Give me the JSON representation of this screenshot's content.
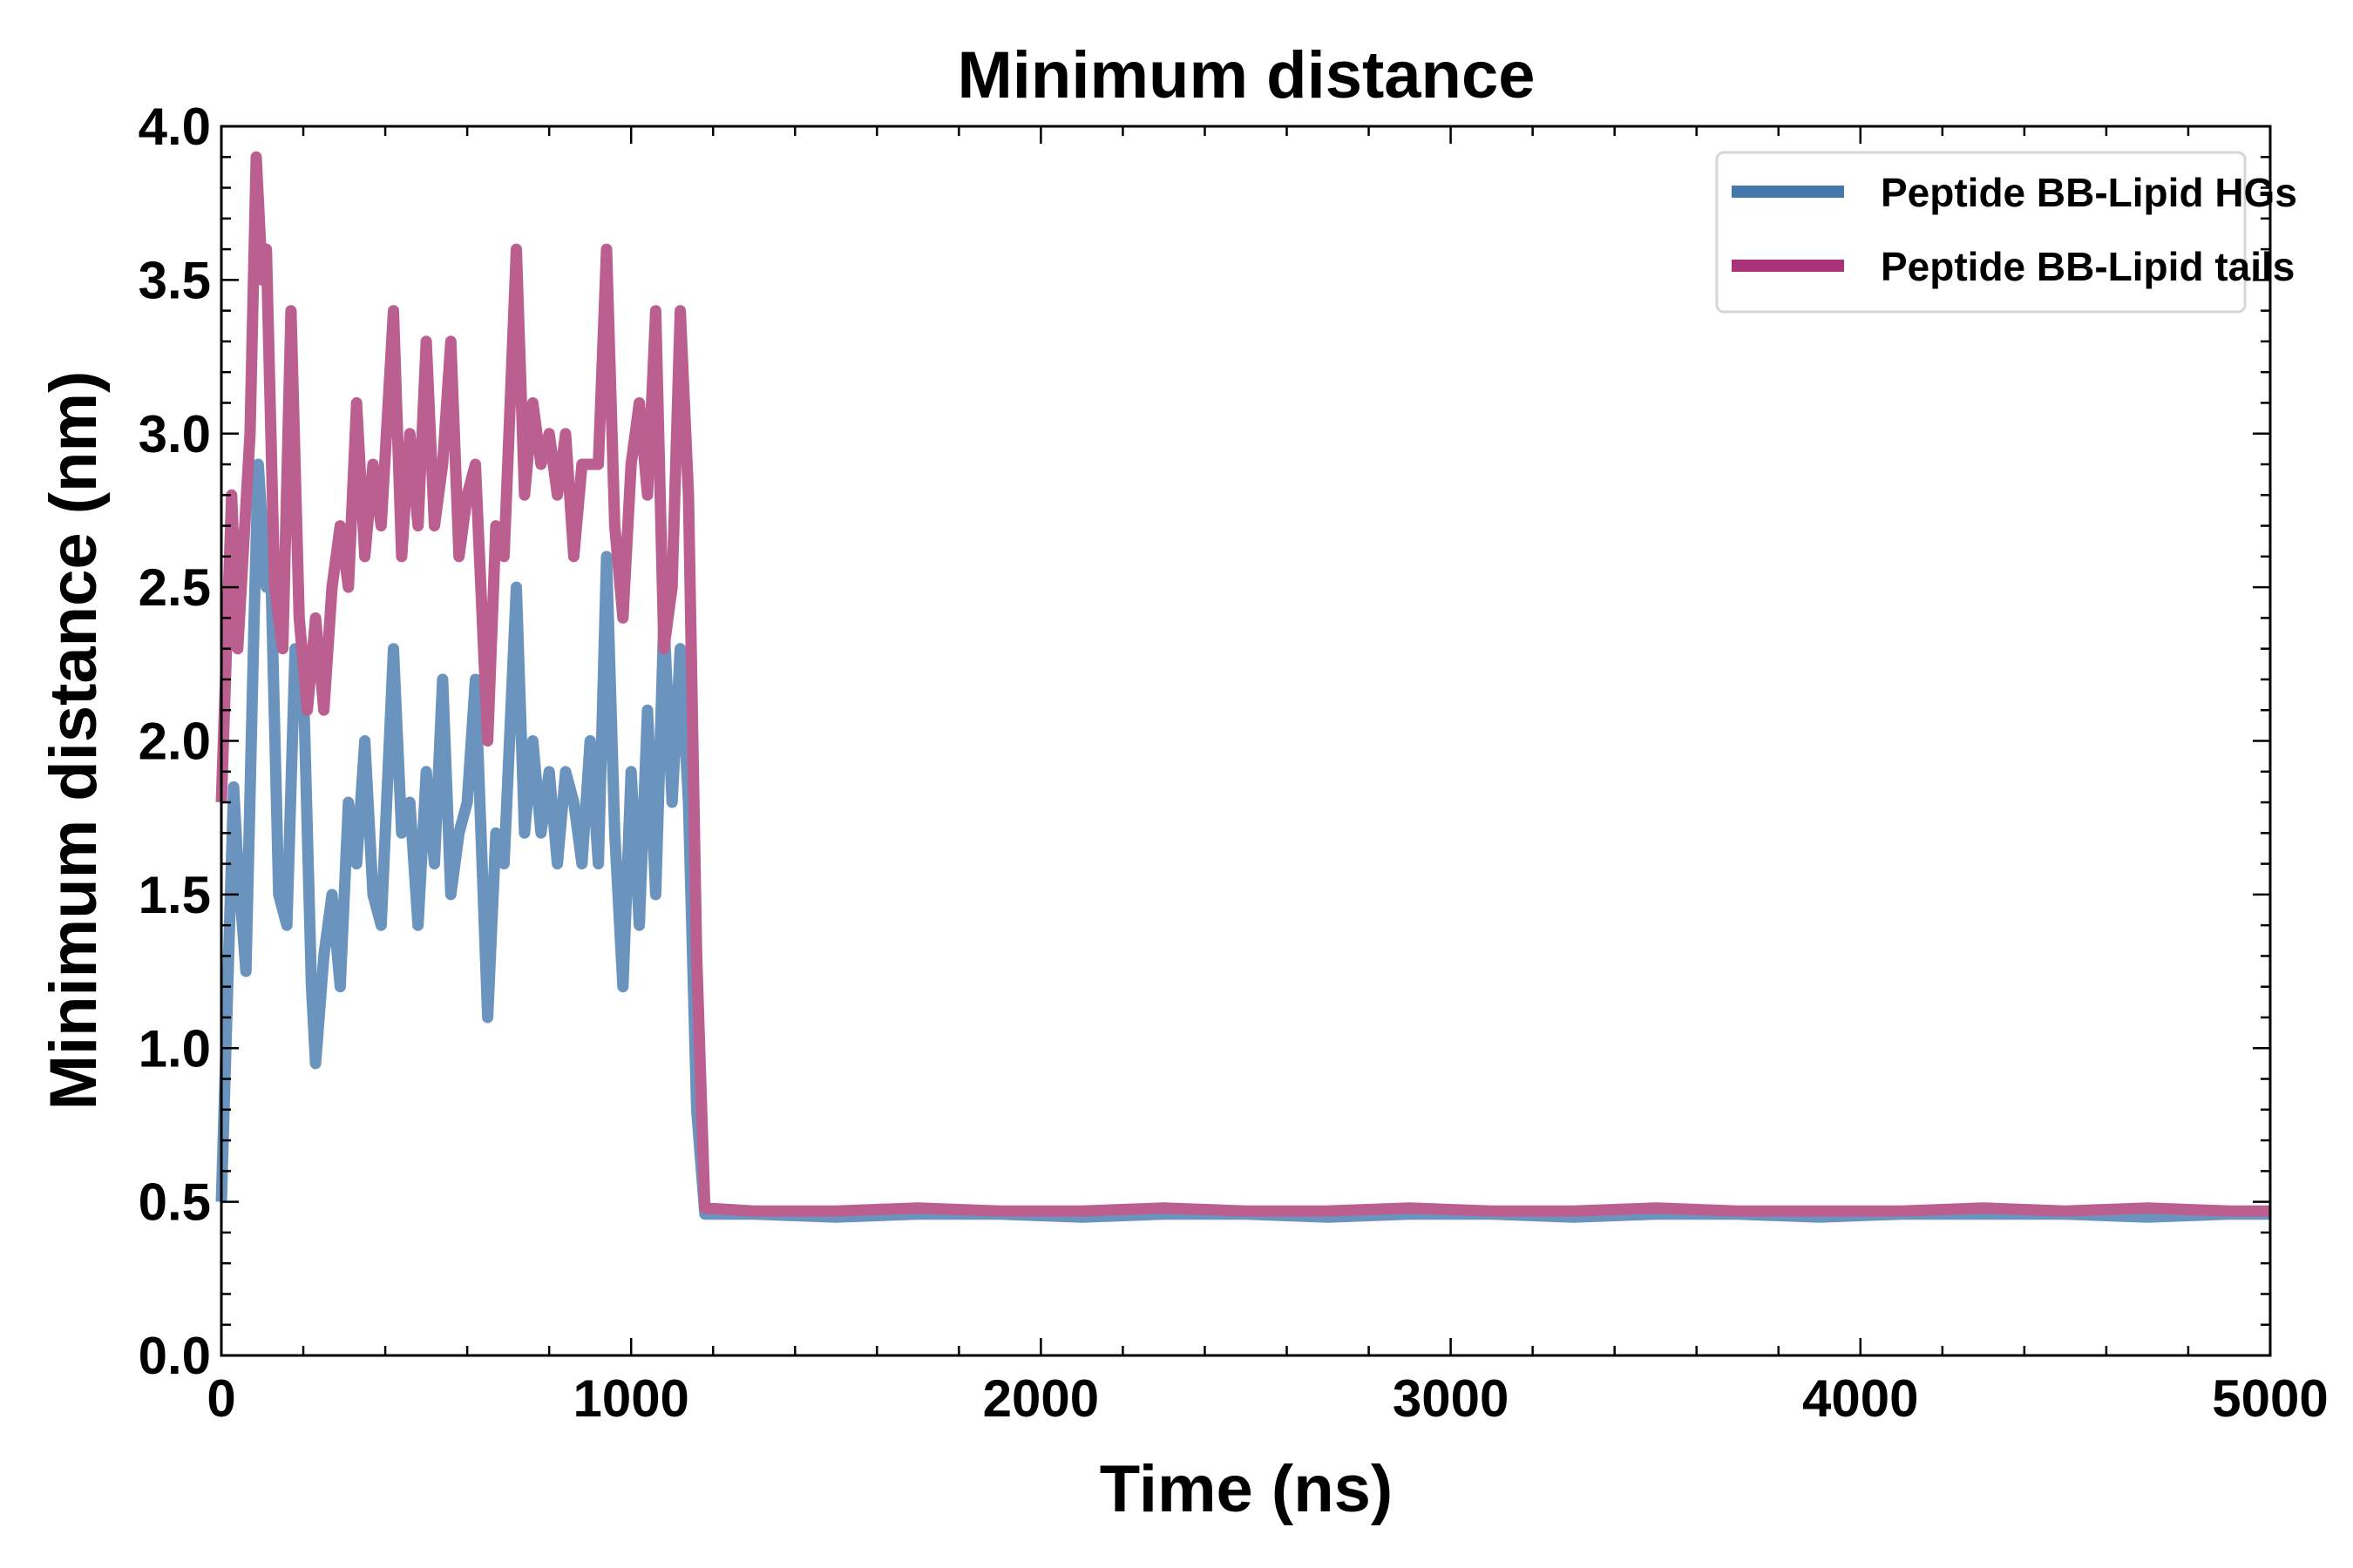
{
  "chart_data": {
    "type": "line",
    "title": "Minimum distance",
    "xlabel": "Time (ns)",
    "ylabel": "Minimum distance (nm)",
    "xlim": [
      0,
      5000
    ],
    "ylim": [
      0.0,
      4.0
    ],
    "xticks": [
      "0",
      "1000",
      "2000",
      "3000",
      "4000",
      "5000"
    ],
    "yticks": [
      "0.0",
      "0.5",
      "1.0",
      "1.5",
      "2.0",
      "2.5",
      "3.0",
      "3.5",
      "4.0"
    ],
    "grid": false,
    "legend_position": "top-right",
    "series": [
      {
        "name": "Peptide BB-Lipid HGs",
        "color": "#4477aa",
        "line_color": "#6a94bd",
        "x": [
          0,
          20,
          30,
          40,
          60,
          80,
          90,
          110,
          120,
          140,
          160,
          180,
          200,
          220,
          230,
          250,
          270,
          290,
          310,
          330,
          350,
          370,
          390,
          420,
          440,
          460,
          480,
          500,
          520,
          540,
          560,
          580,
          600,
          620,
          650,
          670,
          690,
          720,
          740,
          760,
          780,
          800,
          820,
          840,
          860,
          880,
          900,
          920,
          940,
          960,
          980,
          1000,
          1020,
          1040,
          1060,
          1080,
          1100,
          1120,
          1140,
          1160,
          1180,
          1300,
          1500,
          1700,
          1900,
          2100,
          2300,
          2500,
          2700,
          2900,
          3100,
          3300,
          3500,
          3700,
          3900,
          4100,
          4300,
          4500,
          4700,
          4900,
          5000
        ],
        "y": [
          0.5,
          1.4,
          1.85,
          1.6,
          1.25,
          2.4,
          2.9,
          2.5,
          2.6,
          1.5,
          1.4,
          2.3,
          2.2,
          1.2,
          0.95,
          1.3,
          1.5,
          1.2,
          1.8,
          1.6,
          2.0,
          1.5,
          1.4,
          2.3,
          1.7,
          1.8,
          1.4,
          1.9,
          1.6,
          2.2,
          1.5,
          1.7,
          1.8,
          2.2,
          1.1,
          1.7,
          1.6,
          2.5,
          1.7,
          2.0,
          1.7,
          1.9,
          1.6,
          1.9,
          1.8,
          1.6,
          2.0,
          1.6,
          2.6,
          1.7,
          1.2,
          1.9,
          1.4,
          2.1,
          1.5,
          2.4,
          1.8,
          2.3,
          1.8,
          0.8,
          0.46,
          0.46,
          0.45,
          0.46,
          0.46,
          0.45,
          0.46,
          0.46,
          0.45,
          0.46,
          0.46,
          0.45,
          0.46,
          0.46,
          0.45,
          0.46,
          0.46,
          0.46,
          0.45,
          0.46,
          0.46
        ]
      },
      {
        "name": "Peptide BB-Lipid tails",
        "color": "#aa3377",
        "line_color": "#bb5e90",
        "x": [
          0,
          25,
          40,
          70,
          85,
          100,
          110,
          130,
          150,
          170,
          190,
          210,
          230,
          250,
          270,
          290,
          310,
          330,
          350,
          370,
          390,
          420,
          440,
          460,
          480,
          500,
          520,
          540,
          560,
          580,
          600,
          620,
          650,
          670,
          690,
          720,
          740,
          760,
          780,
          800,
          820,
          840,
          860,
          880,
          900,
          920,
          940,
          960,
          980,
          1000,
          1020,
          1040,
          1060,
          1080,
          1100,
          1120,
          1140,
          1160,
          1180,
          1300,
          1500,
          1700,
          1900,
          2100,
          2300,
          2500,
          2700,
          2900,
          3100,
          3300,
          3500,
          3700,
          3900,
          4100,
          4300,
          4500,
          4700,
          4900,
          5000
        ],
        "y": [
          1.8,
          2.8,
          2.3,
          3.0,
          3.9,
          3.5,
          3.6,
          2.5,
          2.3,
          3.4,
          2.4,
          2.1,
          2.4,
          2.1,
          2.5,
          2.7,
          2.5,
          3.1,
          2.6,
          2.9,
          2.7,
          3.4,
          2.6,
          3.0,
          2.7,
          3.3,
          2.7,
          2.9,
          3.3,
          2.6,
          2.8,
          2.9,
          2.0,
          2.7,
          2.6,
          3.6,
          2.8,
          3.1,
          2.9,
          3.0,
          2.8,
          3.0,
          2.6,
          2.9,
          2.9,
          2.9,
          3.6,
          2.7,
          2.4,
          2.9,
          3.1,
          2.8,
          3.4,
          2.3,
          2.5,
          3.4,
          2.8,
          1.3,
          0.48,
          0.47,
          0.47,
          0.48,
          0.47,
          0.47,
          0.48,
          0.47,
          0.47,
          0.48,
          0.47,
          0.47,
          0.48,
          0.47,
          0.47,
          0.47,
          0.48,
          0.47,
          0.48,
          0.47,
          0.47
        ]
      }
    ]
  }
}
